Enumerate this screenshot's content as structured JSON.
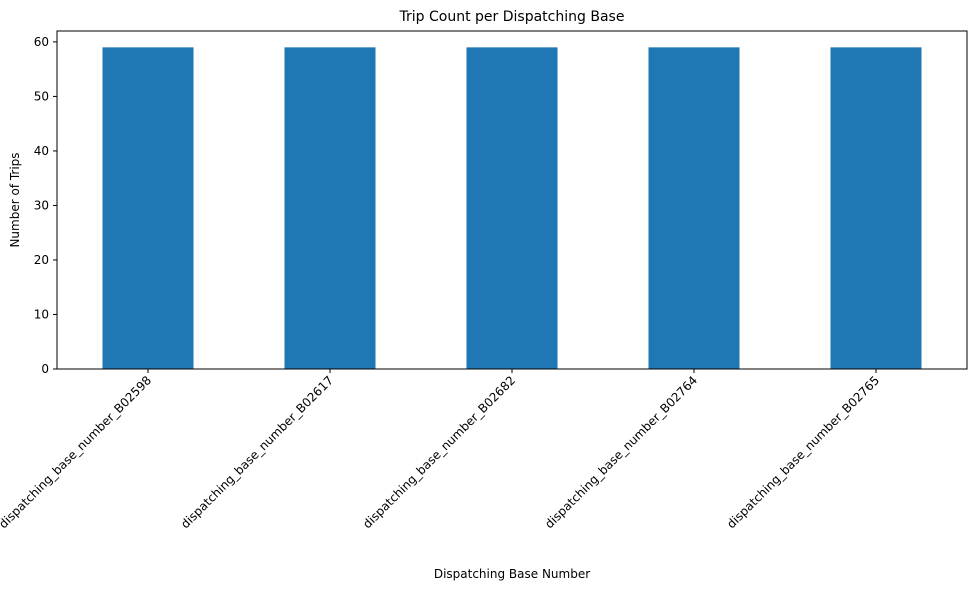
{
  "chart_data": {
    "type": "bar",
    "title": "Trip Count per Dispatching Base",
    "xlabel": "Dispatching Base Number",
    "ylabel": "Number of Trips",
    "categories": [
      "dispatching_base_number_B02598",
      "dispatching_base_number_B02617",
      "dispatching_base_number_B02682",
      "dispatching_base_number_B02764",
      "dispatching_base_number_B02765"
    ],
    "values": [
      59,
      59,
      59,
      59,
      59
    ],
    "ylim": [
      0,
      62
    ],
    "yticks": [
      0,
      10,
      20,
      30,
      40,
      50,
      60
    ],
    "grid": false,
    "bar_color": "#1f77b4"
  }
}
